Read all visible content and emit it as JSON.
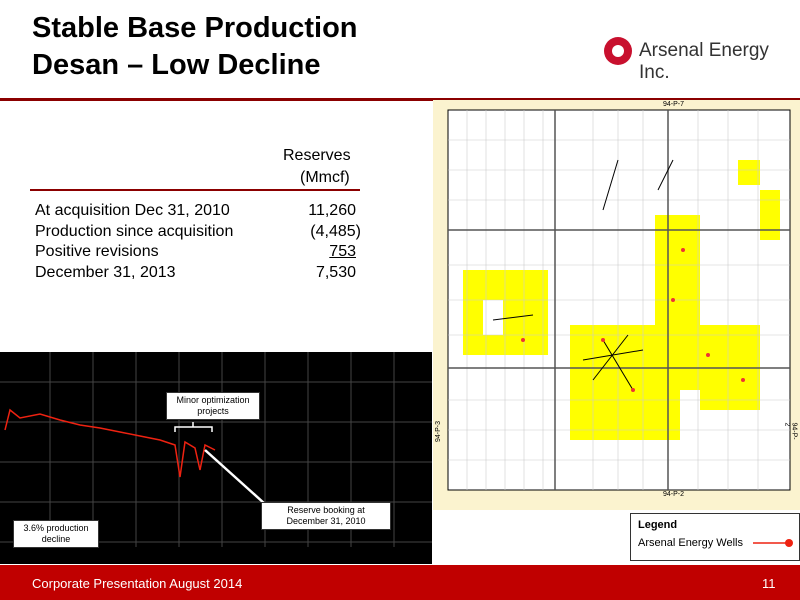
{
  "header": {
    "title_line1": "Stable Base Production",
    "title_line2": "Desan – Low Decline",
    "logo": "Arsenal Energy Inc."
  },
  "table": {
    "header": [
      "Reserves",
      "(Mmcf)"
    ],
    "rows": [
      [
        "At acquisition Dec 31, 2010",
        "11,260"
      ],
      [
        "Production since acquisition",
        "(4,485)"
      ],
      [
        "Positive revisions",
        "753"
      ],
      [
        "December 31, 2013",
        "7,530"
      ]
    ]
  },
  "chart": {
    "annotations": [
      "Minor optimization projects",
      "Reserve booking at December 31, 2010",
      "3.6% production decline"
    ]
  },
  "map": {
    "labels": {
      "top": "94-P-7",
      "left": "94-P-3",
      "bottom": "94-P-2",
      "right": "94-P-2"
    },
    "legend": {
      "title": "Legend",
      "entry": "Arsenal Energy Wells"
    }
  },
  "footer": {
    "text": "Corporate Presentation August 2014",
    "page": "11"
  }
}
